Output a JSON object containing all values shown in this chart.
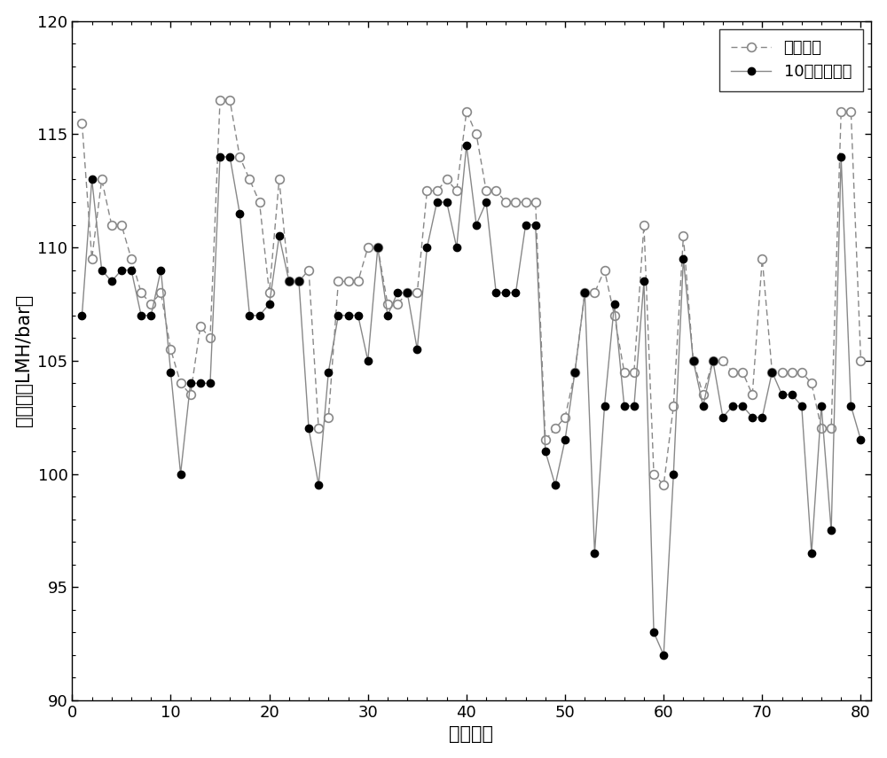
{
  "target_x": [
    1,
    2,
    3,
    4,
    5,
    6,
    7,
    8,
    9,
    10,
    11,
    12,
    13,
    14,
    15,
    16,
    17,
    18,
    19,
    20,
    21,
    22,
    23,
    24,
    25,
    26,
    27,
    28,
    29,
    30,
    31,
    32,
    33,
    34,
    35,
    36,
    37,
    38,
    39,
    40,
    41,
    42,
    43,
    44,
    45,
    46,
    47,
    48,
    49,
    50,
    51,
    52,
    53,
    54,
    55,
    56,
    57,
    58,
    59,
    60,
    61,
    62,
    63,
    64,
    65,
    66,
    67,
    68,
    69,
    70,
    71,
    72,
    73,
    74,
    75,
    76,
    77,
    78,
    79,
    80
  ],
  "target_y": [
    115.5,
    109.5,
    113.0,
    111.0,
    111.0,
    109.5,
    108.0,
    107.5,
    108.0,
    105.5,
    104.0,
    103.5,
    106.5,
    106.0,
    116.5,
    116.5,
    114.0,
    113.0,
    112.0,
    108.0,
    113.0,
    108.5,
    108.5,
    109.0,
    102.0,
    102.5,
    108.5,
    108.5,
    108.5,
    110.0,
    110.0,
    107.5,
    107.5,
    108.0,
    108.0,
    112.5,
    112.5,
    113.0,
    112.5,
    116.0,
    115.0,
    112.5,
    112.5,
    112.0,
    112.0,
    112.0,
    112.0,
    101.5,
    102.0,
    102.5,
    104.5,
    108.0,
    108.0,
    109.0,
    107.0,
    104.5,
    104.5,
    111.0,
    100.0,
    99.5,
    103.0,
    110.5,
    105.0,
    103.5,
    105.0,
    105.0,
    104.5,
    104.5,
    103.5,
    109.5,
    104.5,
    104.5,
    104.5,
    104.5,
    104.0,
    102.0,
    102.0,
    116.0,
    116.0,
    105.0
  ],
  "pred_x": [
    1,
    2,
    3,
    4,
    5,
    6,
    7,
    8,
    9,
    10,
    11,
    12,
    13,
    14,
    15,
    16,
    17,
    18,
    19,
    20,
    21,
    22,
    23,
    24,
    25,
    26,
    27,
    28,
    29,
    30,
    31,
    32,
    33,
    34,
    35,
    36,
    37,
    38,
    39,
    40,
    41,
    42,
    43,
    44,
    45,
    46,
    47,
    48,
    49,
    50,
    51,
    52,
    53,
    54,
    55,
    56,
    57,
    58,
    59,
    60,
    61,
    62,
    63,
    64,
    65,
    66,
    67,
    68,
    69,
    70,
    71,
    72,
    73,
    74,
    75,
    76,
    77,
    78,
    79,
    80
  ],
  "pred_y": [
    107.0,
    113.0,
    109.0,
    108.5,
    109.0,
    109.0,
    107.0,
    107.0,
    109.0,
    104.5,
    100.0,
    104.0,
    104.0,
    104.0,
    114.0,
    114.0,
    111.5,
    107.0,
    107.0,
    107.5,
    110.5,
    108.5,
    108.5,
    102.0,
    99.5,
    104.5,
    107.0,
    107.0,
    107.0,
    105.0,
    110.0,
    107.0,
    108.0,
    108.0,
    105.5,
    110.0,
    112.0,
    112.0,
    110.0,
    114.5,
    111.0,
    112.0,
    108.0,
    108.0,
    108.0,
    111.0,
    111.0,
    101.0,
    99.5,
    101.5,
    104.5,
    108.0,
    96.5,
    103.0,
    107.5,
    103.0,
    103.0,
    108.5,
    93.0,
    92.0,
    100.0,
    109.5,
    105.0,
    103.0,
    105.0,
    102.5,
    103.0,
    103.0,
    102.5,
    102.5,
    104.5,
    103.5,
    103.5,
    103.0,
    96.5,
    103.0,
    97.5,
    114.0,
    103.0,
    101.5
  ],
  "xlabel": "测试样本",
  "ylabel": "透水率（LMH/bar）",
  "legend1": "目标输出",
  "legend2": "10步预测输出",
  "xlim": [
    0,
    81
  ],
  "ylim": [
    90,
    120
  ],
  "yticks": [
    90,
    95,
    100,
    105,
    110,
    115,
    120
  ],
  "xticks": [
    0,
    10,
    20,
    30,
    40,
    50,
    60,
    70,
    80
  ],
  "line_color_gray": "#888888",
  "line_color_black": "#000000",
  "background_color": "#ffffff"
}
